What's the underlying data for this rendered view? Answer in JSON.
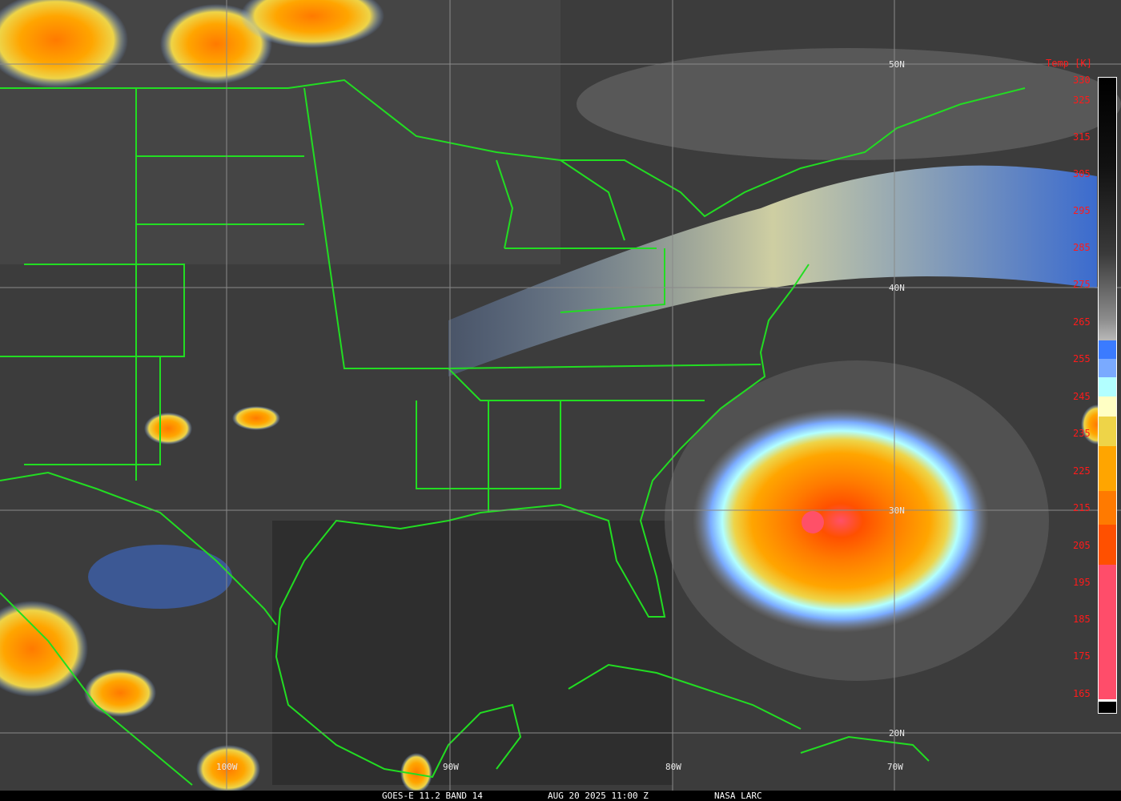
{
  "caption": {
    "satellite": "GOES-E 11.2 BAND 14",
    "datetime": "AUG 20 2025 11:00 Z",
    "credit": "NASA LARC"
  },
  "legend": {
    "title": "Temp [K]",
    "ticks": [
      "330",
      "325",
      "315",
      "305",
      "295",
      "285",
      "275",
      "265",
      "255",
      "245",
      "235",
      "225",
      "215",
      "205",
      "195",
      "185",
      "175",
      "165"
    ],
    "colors": {
      "cold_top": "#000000",
      "warm_gray": "#b8b8b8",
      "blue": "#3b7bff",
      "light_blue": "#7aaaff",
      "cyan": "#b2ffff",
      "pale_yellow": "#ffffc4",
      "yellow": "#eed448",
      "orange": "#ffa500",
      "dark_orange": "#ff7a00",
      "red_orange": "#ff5000",
      "pink": "#ff4d6a"
    }
  },
  "grid_labels": {
    "lat": [
      "50N",
      "40N",
      "30N",
      "20N"
    ],
    "lon": [
      "100W",
      "90W",
      "80W",
      "70W"
    ]
  },
  "features": {
    "boundary_color": "#22dd22",
    "storm": "hurricane-east-of-carolinas"
  }
}
